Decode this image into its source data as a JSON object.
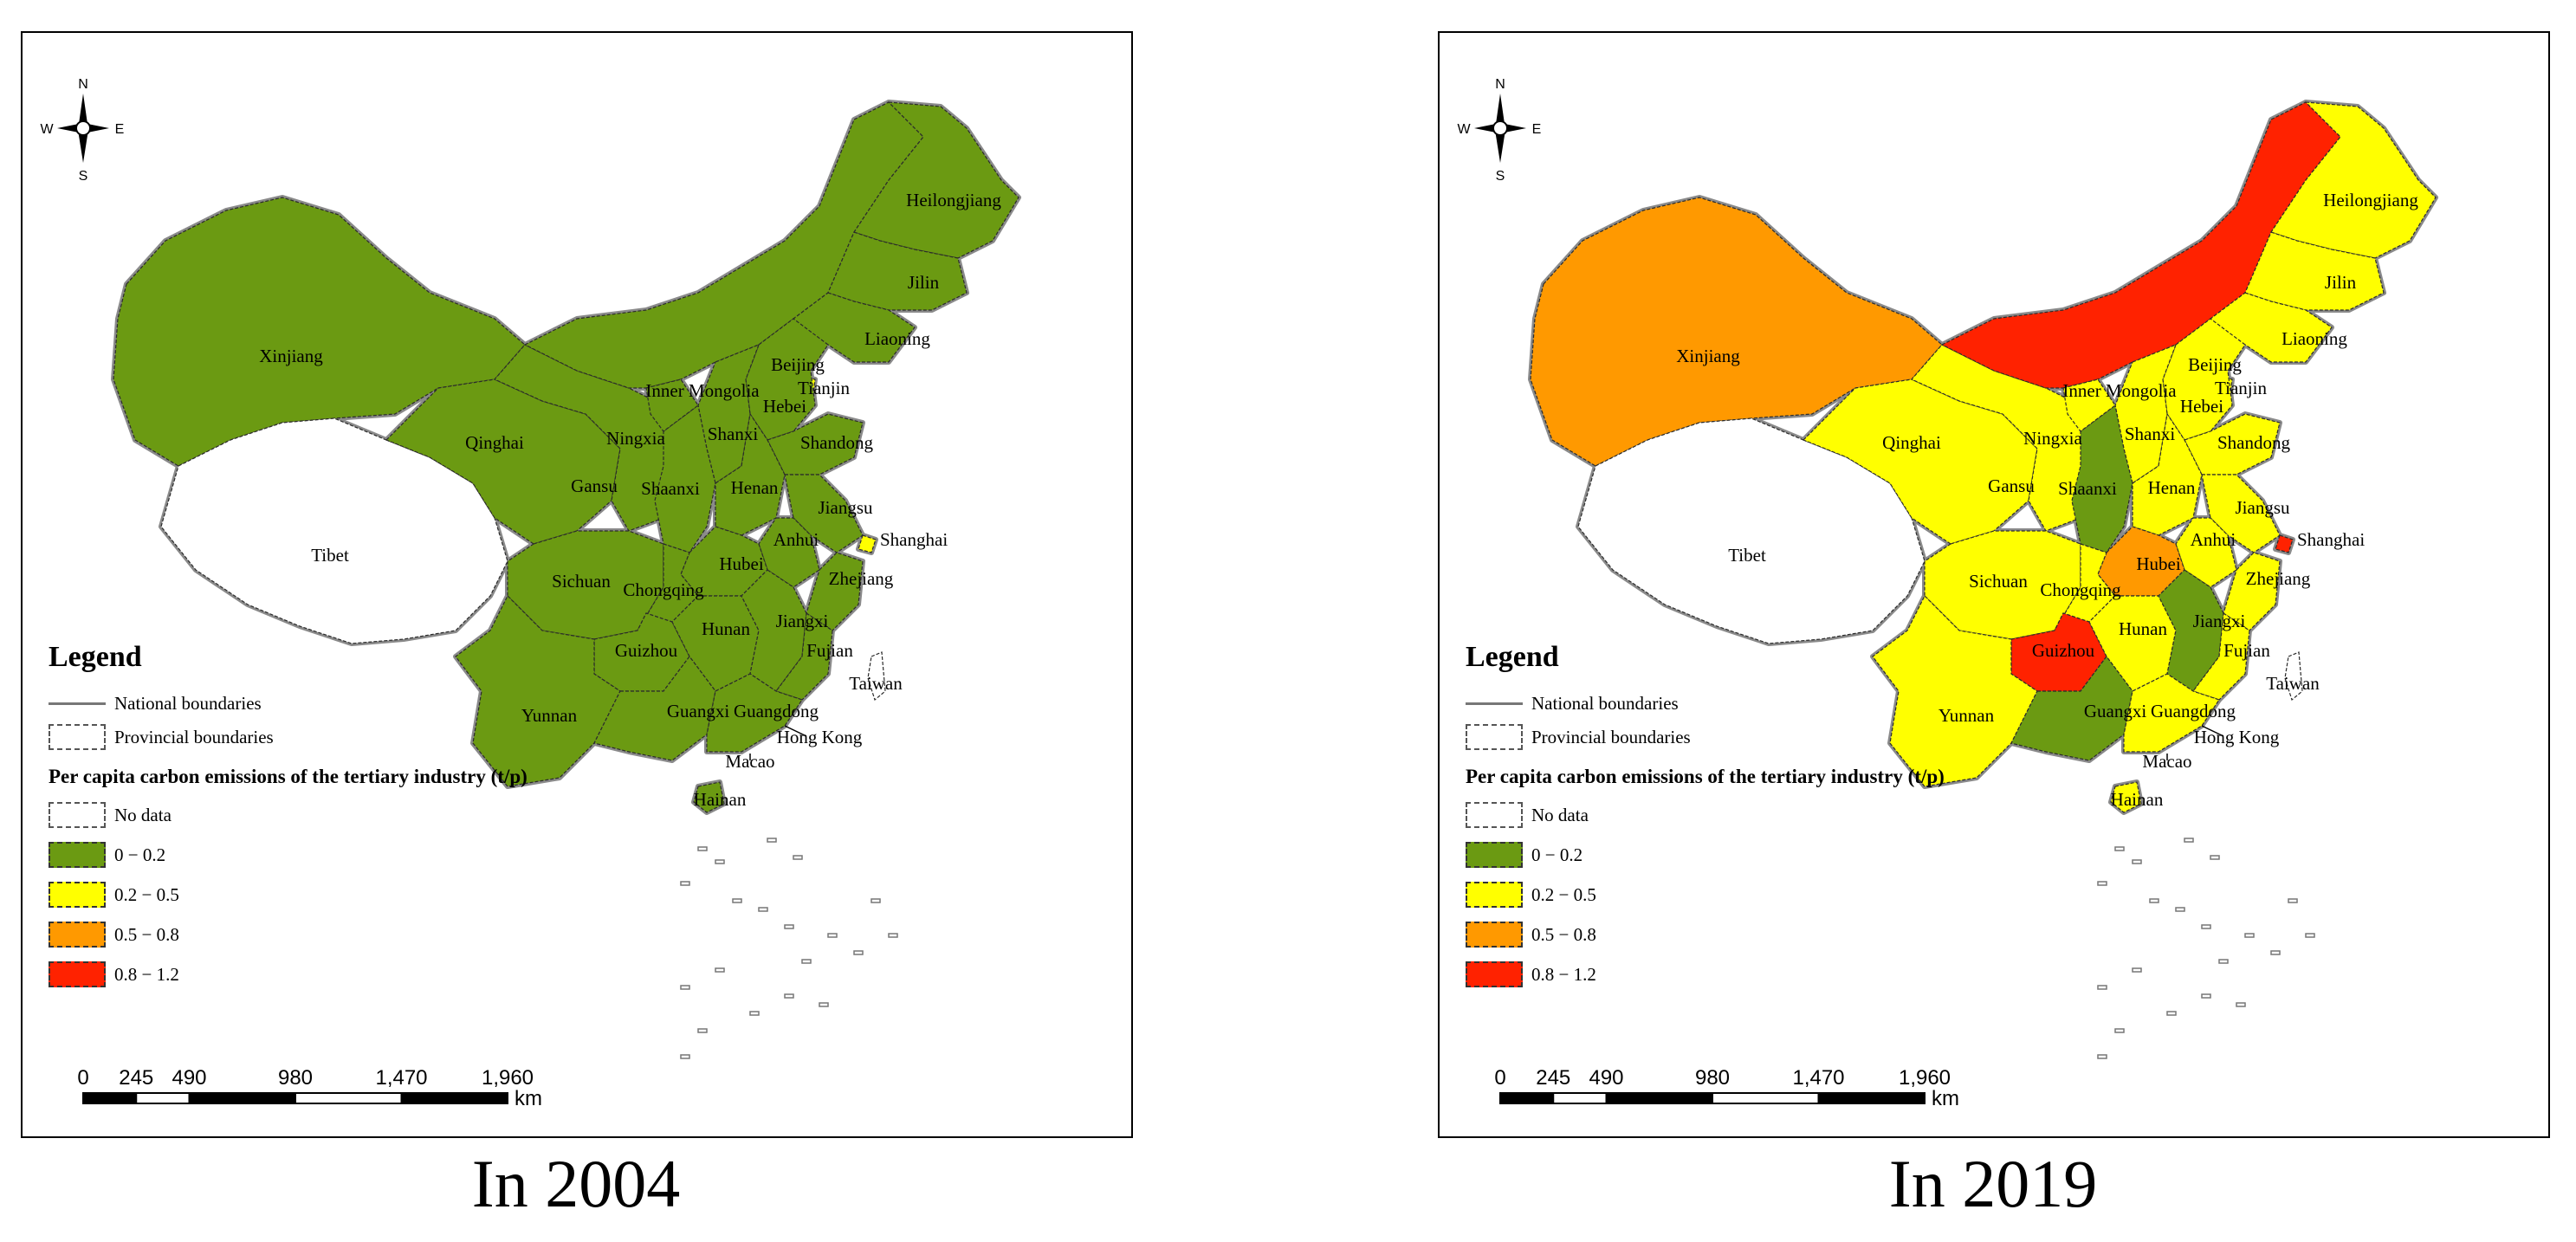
{
  "panels": [
    {
      "caption": "In 2004",
      "compass": {
        "n": "N",
        "s": "S",
        "e": "E",
        "w": "W"
      },
      "fills": {
        "xinjiang": "green",
        "qinghai": "green",
        "gansu": "green",
        "inner_mongolia": "green",
        "heilongjiang": "green",
        "jilin": "green",
        "liaoning": "green",
        "beijing": "yellow",
        "tianjin": "yellow",
        "hebei": "green",
        "shanxi": "green",
        "shaanxi": "green",
        "ningxia": "green",
        "shandong": "green",
        "henan": "green",
        "jiangsu": "green",
        "anhui": "green",
        "shanghai": "yellow",
        "zhejiang": "green",
        "hubei": "green",
        "sichuan": "green",
        "chongqing": "green",
        "guizhou": "green",
        "yunnan": "green",
        "hunan": "green",
        "jiangxi": "green",
        "fujian": "green",
        "guangxi": "green",
        "guangdong": "green",
        "hainan": "green"
      },
      "labels": {
        "xinjiang": "Xinjiang",
        "tibet": "Tibet",
        "qinghai": "Qinghai",
        "gansu": "Gansu",
        "inner_mongolia": "Inner Mongolia",
        "heilongjiang": "Heilongjiang",
        "jilin": "Jilin",
        "liaoning": "Liaoning",
        "beijing": "Beijing",
        "tianjin": "Tianjin",
        "hebei": "Hebei",
        "shanxi": "Shanxi",
        "shaanxi": "Shaanxi",
        "ningxia": "Ningxia",
        "shandong": "Shandong",
        "henan": "Henan",
        "jiangsu": "Jiangsu",
        "anhui": "Anhui",
        "shanghai": "Shanghai",
        "zhejiang": "Zhejiang",
        "hubei": "Hubei",
        "sichuan": "Sichuan",
        "chongqing": "Chongqing",
        "guizhou": "Guizhou",
        "yunnan": "Yunnan",
        "hunan": "Hunan",
        "jiangxi": "Jiangxi",
        "fujian": "Fujian",
        "taiwan": "Taiwan",
        "guangxi": "Guangxi",
        "guangdong": "Guangdong",
        "hong_kong": "Hong Kong",
        "macao": "Macao",
        "hainan": "Hainan"
      },
      "legend": {
        "title": "Legend",
        "national": "National boundaries",
        "provincial": "Provincial boundaries",
        "heading": "Per capita carbon emissions of the tertiary industry (t/p)",
        "classes": [
          {
            "label": "No data",
            "color": "#ffffff"
          },
          {
            "label": "0 − 0.2",
            "color": "#6b9a12"
          },
          {
            "label": "0.2 − 0.5",
            "color": "#ffff00"
          },
          {
            "label": "0.5 − 0.8",
            "color": "#ff9900"
          },
          {
            "label": "0.8 − 1.2",
            "color": "#ff2200"
          }
        ]
      },
      "scale": {
        "ticks": [
          "0",
          "245",
          "490",
          "980",
          "1,470",
          "1,960"
        ],
        "unit": "km"
      }
    },
    {
      "caption": "In 2019",
      "compass": {
        "n": "N",
        "s": "S",
        "e": "E",
        "w": "W"
      },
      "fills": {
        "xinjiang": "orange",
        "qinghai": "yellow",
        "gansu": "yellow",
        "inner_mongolia": "red",
        "heilongjiang": "yellow",
        "jilin": "yellow",
        "liaoning": "yellow",
        "beijing": "red",
        "tianjin": "yellow",
        "hebei": "yellow",
        "shanxi": "yellow",
        "shaanxi": "green",
        "ningxia": "yellow",
        "shandong": "yellow",
        "henan": "yellow",
        "jiangsu": "yellow",
        "anhui": "yellow",
        "shanghai": "red",
        "zhejiang": "yellow",
        "hubei": "orange",
        "sichuan": "yellow",
        "chongqing": "yellow",
        "guizhou": "red",
        "yunnan": "yellow",
        "hunan": "yellow",
        "jiangxi": "green",
        "fujian": "yellow",
        "guangxi": "green",
        "guangdong": "yellow",
        "hainan": "yellow"
      },
      "labels": {
        "xinjiang": "Xinjiang",
        "tibet": "Tibet",
        "qinghai": "Qinghai",
        "gansu": "Gansu",
        "inner_mongolia": "Inner Mongolia",
        "heilongjiang": "Heilongjiang",
        "jilin": "Jilin",
        "liaoning": "Liaoning",
        "beijing": "Beijing",
        "tianjin": "Tianjin",
        "hebei": "Hebei",
        "shanxi": "Shanxi",
        "shaanxi": "Shaanxi",
        "ningxia": "Ningxia",
        "shandong": "Shandong",
        "henan": "Henan",
        "jiangsu": "Jiangsu",
        "anhui": "Anhui",
        "shanghai": "Shanghai",
        "zhejiang": "Zhejiang",
        "hubei": "Hubei",
        "sichuan": "Sichuan",
        "chongqing": "Chongqing",
        "guizhou": "Guizhou",
        "yunnan": "Yunnan",
        "hunan": "Hunan",
        "jiangxi": "Jiangxi",
        "fujian": "Fujian",
        "taiwan": "Taiwan",
        "guangxi": "Guangxi",
        "guangdong": "Guangdong",
        "hong_kong": "Hong Kong",
        "macao": "Macao",
        "hainan": "Hainan"
      },
      "legend": {
        "title": "Legend",
        "national": "National boundaries",
        "provincial": "Provincial boundaries",
        "heading": "Per capita carbon emissions of the tertiary industry (t/p)",
        "classes": [
          {
            "label": "No data",
            "color": "#ffffff"
          },
          {
            "label": "0 − 0.2",
            "color": "#6b9a12"
          },
          {
            "label": "0.2 − 0.5",
            "color": "#ffff00"
          },
          {
            "label": "0.5 − 0.8",
            "color": "#ff9900"
          },
          {
            "label": "0.8 − 1.2",
            "color": "#ff2200"
          }
        ]
      },
      "scale": {
        "ticks": [
          "0",
          "245",
          "490",
          "980",
          "1,470",
          "1,960"
        ],
        "unit": "km"
      }
    }
  ],
  "colors": {
    "green": "#6b9a12",
    "yellow": "#ffff00",
    "orange": "#ff9900",
    "red": "#ff2200",
    "nodata": "#ffffff"
  }
}
